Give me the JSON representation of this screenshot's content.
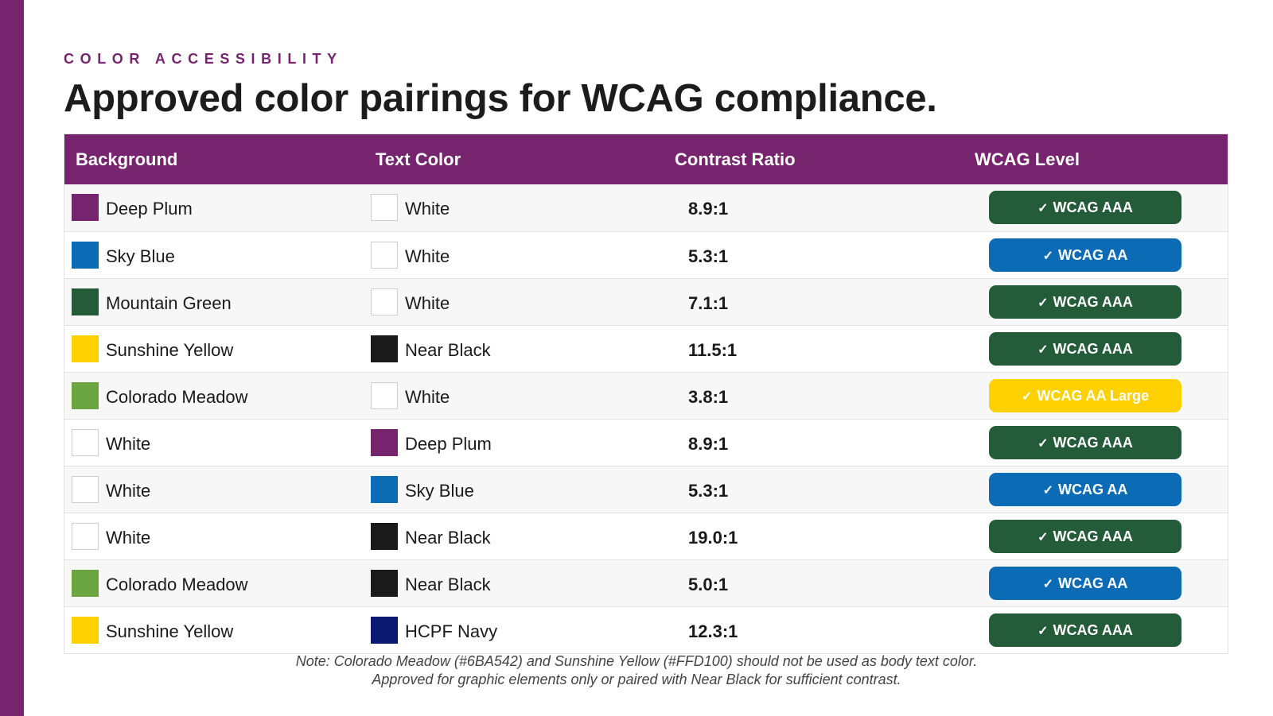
{
  "eyebrow": "COLOR ACCESSIBILITY",
  "title": "Approved color pairings for WCAG compliance.",
  "accent_color": "#77246f",
  "table": {
    "headers": [
      "Background",
      "Text Color",
      "Contrast Ratio",
      "WCAG Level"
    ],
    "rows": [
      {
        "bg_name": "Deep Plum",
        "bg_color": "#77246f",
        "text_name": "White",
        "text_color": "#ffffff",
        "ratio": "8.9:1",
        "level": "WCAG AAA",
        "level_color": "#245c3a"
      },
      {
        "bg_name": "Sky Blue",
        "bg_color": "#0c6bb5",
        "text_name": "White",
        "text_color": "#ffffff",
        "ratio": "5.3:1",
        "level": "WCAG AA",
        "level_color": "#0c6bb5"
      },
      {
        "bg_name": "Mountain Green",
        "bg_color": "#245c3a",
        "text_name": "White",
        "text_color": "#ffffff",
        "ratio": "7.1:1",
        "level": "WCAG AAA",
        "level_color": "#245c3a"
      },
      {
        "bg_name": "Sunshine Yellow",
        "bg_color": "#ffd100",
        "text_name": "Near Black",
        "text_color": "#1a1a1a",
        "ratio": "11.5:1",
        "level": "WCAG AAA",
        "level_color": "#245c3a"
      },
      {
        "bg_name": "Colorado Meadow",
        "bg_color": "#6ba542",
        "text_name": "White",
        "text_color": "#ffffff",
        "ratio": "3.8:1",
        "level": "WCAG AA Large",
        "level_color": "#ffd100"
      },
      {
        "bg_name": "White",
        "bg_color": "#ffffff",
        "text_name": "Deep Plum",
        "text_color": "#77246f",
        "ratio": "8.9:1",
        "level": "WCAG AAA",
        "level_color": "#245c3a"
      },
      {
        "bg_name": "White",
        "bg_color": "#ffffff",
        "text_name": "Sky Blue",
        "text_color": "#0c6bb5",
        "ratio": "5.3:1",
        "level": "WCAG AA",
        "level_color": "#0c6bb5"
      },
      {
        "bg_name": "White",
        "bg_color": "#ffffff",
        "text_name": "Near Black",
        "text_color": "#1a1a1a",
        "ratio": "19.0:1",
        "level": "WCAG AAA",
        "level_color": "#245c3a"
      },
      {
        "bg_name": "Colorado Meadow",
        "bg_color": "#6ba542",
        "text_name": "Near Black",
        "text_color": "#1a1a1a",
        "ratio": "5.0:1",
        "level": "WCAG AA",
        "level_color": "#0c6bb5"
      },
      {
        "bg_name": "Sunshine Yellow",
        "bg_color": "#ffd100",
        "text_name": "HCPF Navy",
        "text_color": "#0b1a6e",
        "ratio": "12.3:1",
        "level": "WCAG AAA",
        "level_color": "#245c3a"
      }
    ]
  },
  "note": {
    "line1": "Note: Colorado Meadow (#6BA542) and Sunshine Yellow (#FFD100) should not be used as body text color.",
    "line2": "Approved for graphic elements only or paired with Near Black for sufficient contrast."
  },
  "check_icon": "checkmark-icon"
}
